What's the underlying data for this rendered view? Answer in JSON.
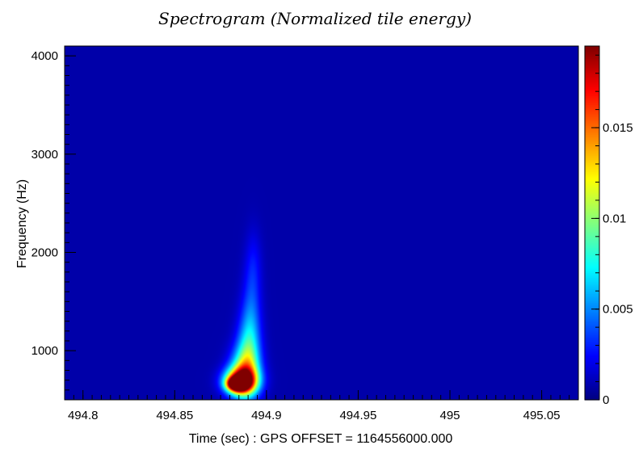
{
  "chart_data": {
    "type": "heatmap",
    "title": "Spectrogram (Normalized tile energy)",
    "xlabel": "Time (sec) : GPS OFFSET = 1164556000.000",
    "ylabel": "Frequency (Hz)",
    "xlim": [
      494.79,
      495.07
    ],
    "ylim": [
      500,
      4100
    ],
    "x_ticks": [
      494.8,
      494.85,
      494.9,
      494.95,
      495,
      495.05
    ],
    "x_tick_labels": [
      "494.8",
      "494.85",
      "494.9",
      "494.95",
      "495",
      "495.05"
    ],
    "y_ticks": [
      1000,
      2000,
      3000,
      4000
    ],
    "y_tick_labels": [
      "1000",
      "2000",
      "3000",
      "4000"
    ],
    "colorbar": {
      "range": [
        0,
        0.0195
      ],
      "ticks": [
        0,
        0.005,
        0.01,
        0.015
      ],
      "tick_labels": [
        "0",
        "0.005",
        "0.01",
        "0.015"
      ],
      "colormap": "jet"
    },
    "background_level": 0.0008,
    "features": [
      {
        "x": 494.884,
        "y": 660,
        "value": 0.0195,
        "sx": 0.0035,
        "sy": 45
      },
      {
        "x": 494.886,
        "y": 690,
        "value": 0.015,
        "sx": 0.006,
        "sy": 90
      },
      {
        "x": 494.888,
        "y": 760,
        "value": 0.0085,
        "sx": 0.0055,
        "sy": 170
      },
      {
        "x": 494.89,
        "y": 930,
        "value": 0.005,
        "sx": 0.0045,
        "sy": 230
      },
      {
        "x": 494.891,
        "y": 1200,
        "value": 0.003,
        "sx": 0.004,
        "sy": 250
      },
      {
        "x": 494.892,
        "y": 1550,
        "value": 0.0018,
        "sx": 0.0035,
        "sy": 300
      },
      {
        "x": 494.893,
        "y": 1900,
        "value": 0.0012,
        "sx": 0.003,
        "sy": 250
      }
    ],
    "grid": false
  }
}
